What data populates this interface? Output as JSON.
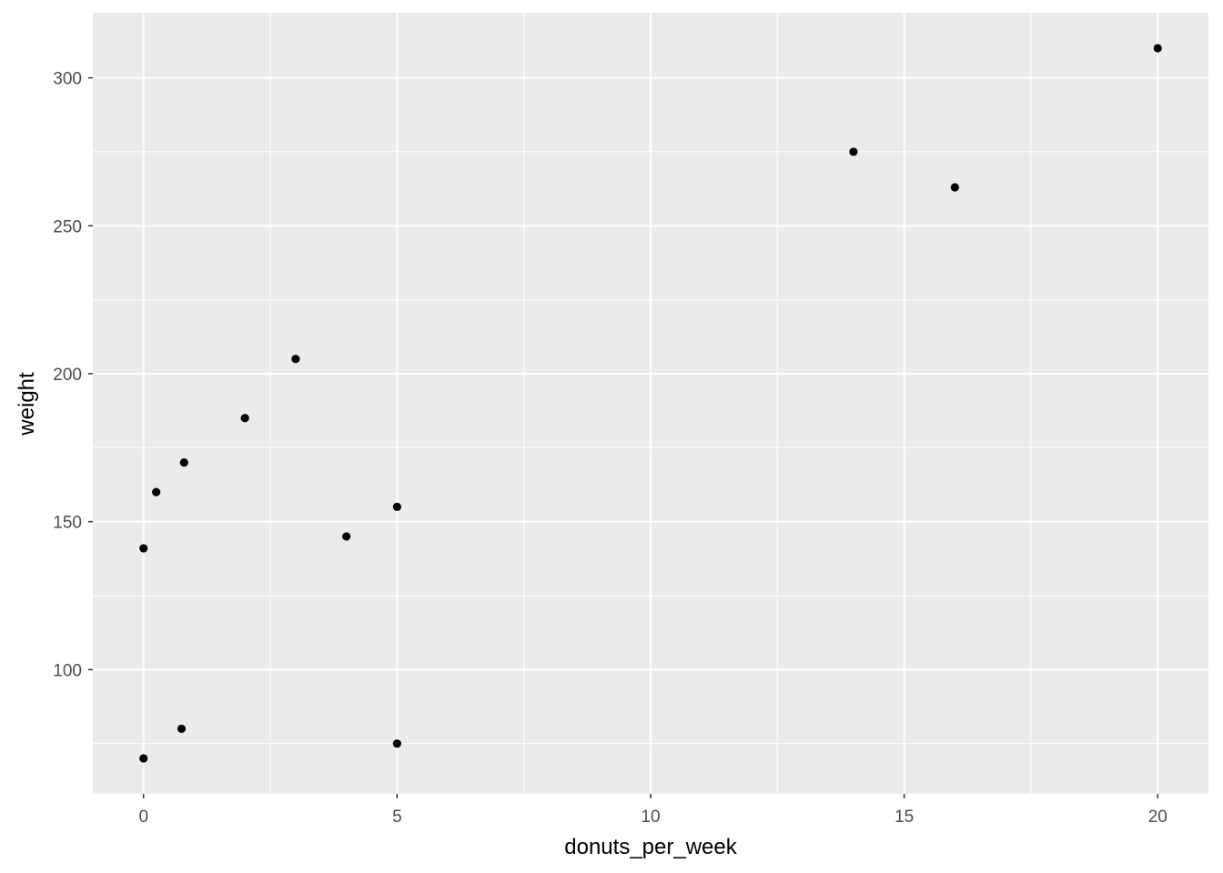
{
  "chart_data": {
    "type": "scatter",
    "title": "",
    "xlabel": "donuts_per_week",
    "ylabel": "weight",
    "xlim": [
      -1,
      21
    ],
    "ylim": [
      58,
      322
    ],
    "x_ticks": [
      0,
      5,
      10,
      15,
      20
    ],
    "x_tick_labels": [
      "0",
      "5",
      "10",
      "15",
      "20"
    ],
    "y_ticks": [
      100,
      150,
      200,
      250,
      300
    ],
    "y_tick_labels": [
      "100",
      "150",
      "200",
      "250",
      "300"
    ],
    "grid": true,
    "panel_color": "#EBEBEB",
    "point_color": "#000000",
    "points": [
      {
        "x": 0,
        "y": 141
      },
      {
        "x": 0.25,
        "y": 160
      },
      {
        "x": 0.8,
        "y": 170
      },
      {
        "x": 2,
        "y": 185
      },
      {
        "x": 3,
        "y": 205
      },
      {
        "x": 4,
        "y": 145
      },
      {
        "x": 5,
        "y": 155
      },
      {
        "x": 0,
        "y": 70
      },
      {
        "x": 0.75,
        "y": 80
      },
      {
        "x": 5,
        "y": 75
      },
      {
        "x": 14,
        "y": 275
      },
      {
        "x": 16,
        "y": 263
      },
      {
        "x": 20,
        "y": 310
      }
    ]
  }
}
